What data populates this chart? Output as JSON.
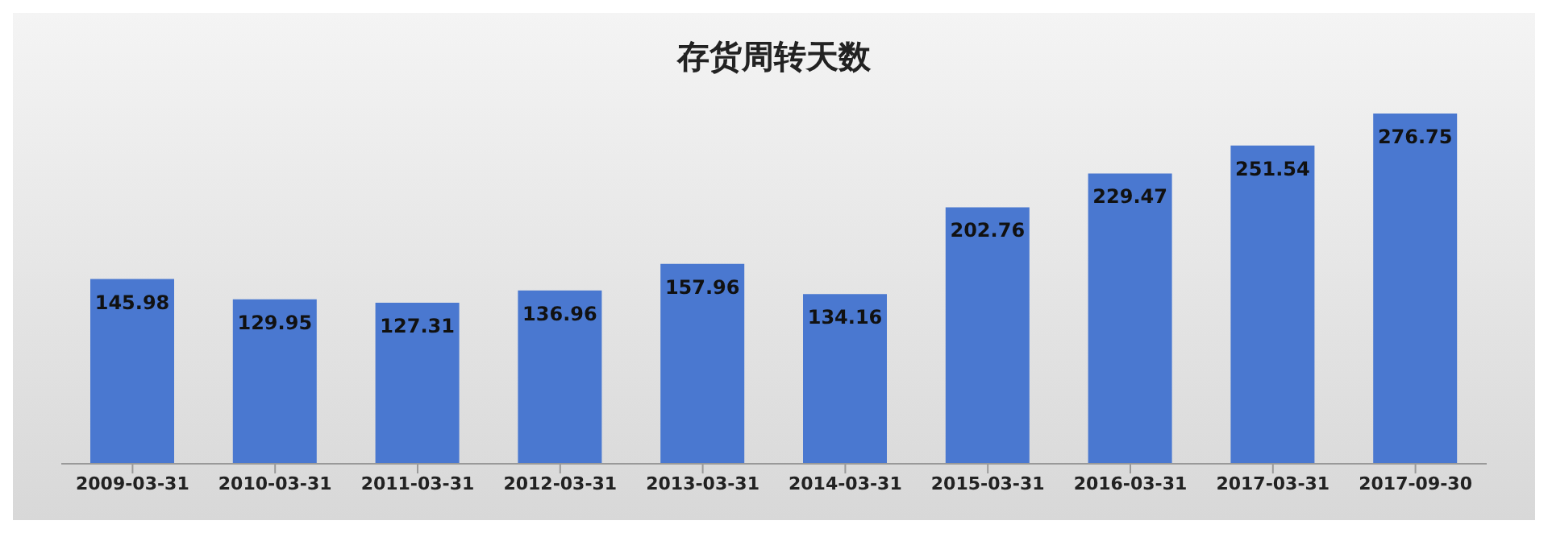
{
  "chart_data": {
    "type": "bar",
    "title": "存货周转天数",
    "categories": [
      "2009-03-31",
      "2010-03-31",
      "2011-03-31",
      "2012-03-31",
      "2013-03-31",
      "2014-03-31",
      "2015-03-31",
      "2016-03-31",
      "2017-03-31",
      "2017-09-30"
    ],
    "values": [
      145.98,
      129.95,
      127.31,
      136.96,
      157.96,
      134.16,
      202.76,
      229.47,
      251.54,
      276.75
    ],
    "color": "#4a78d0",
    "tick_labels": "x",
    "data_labels": true
  }
}
